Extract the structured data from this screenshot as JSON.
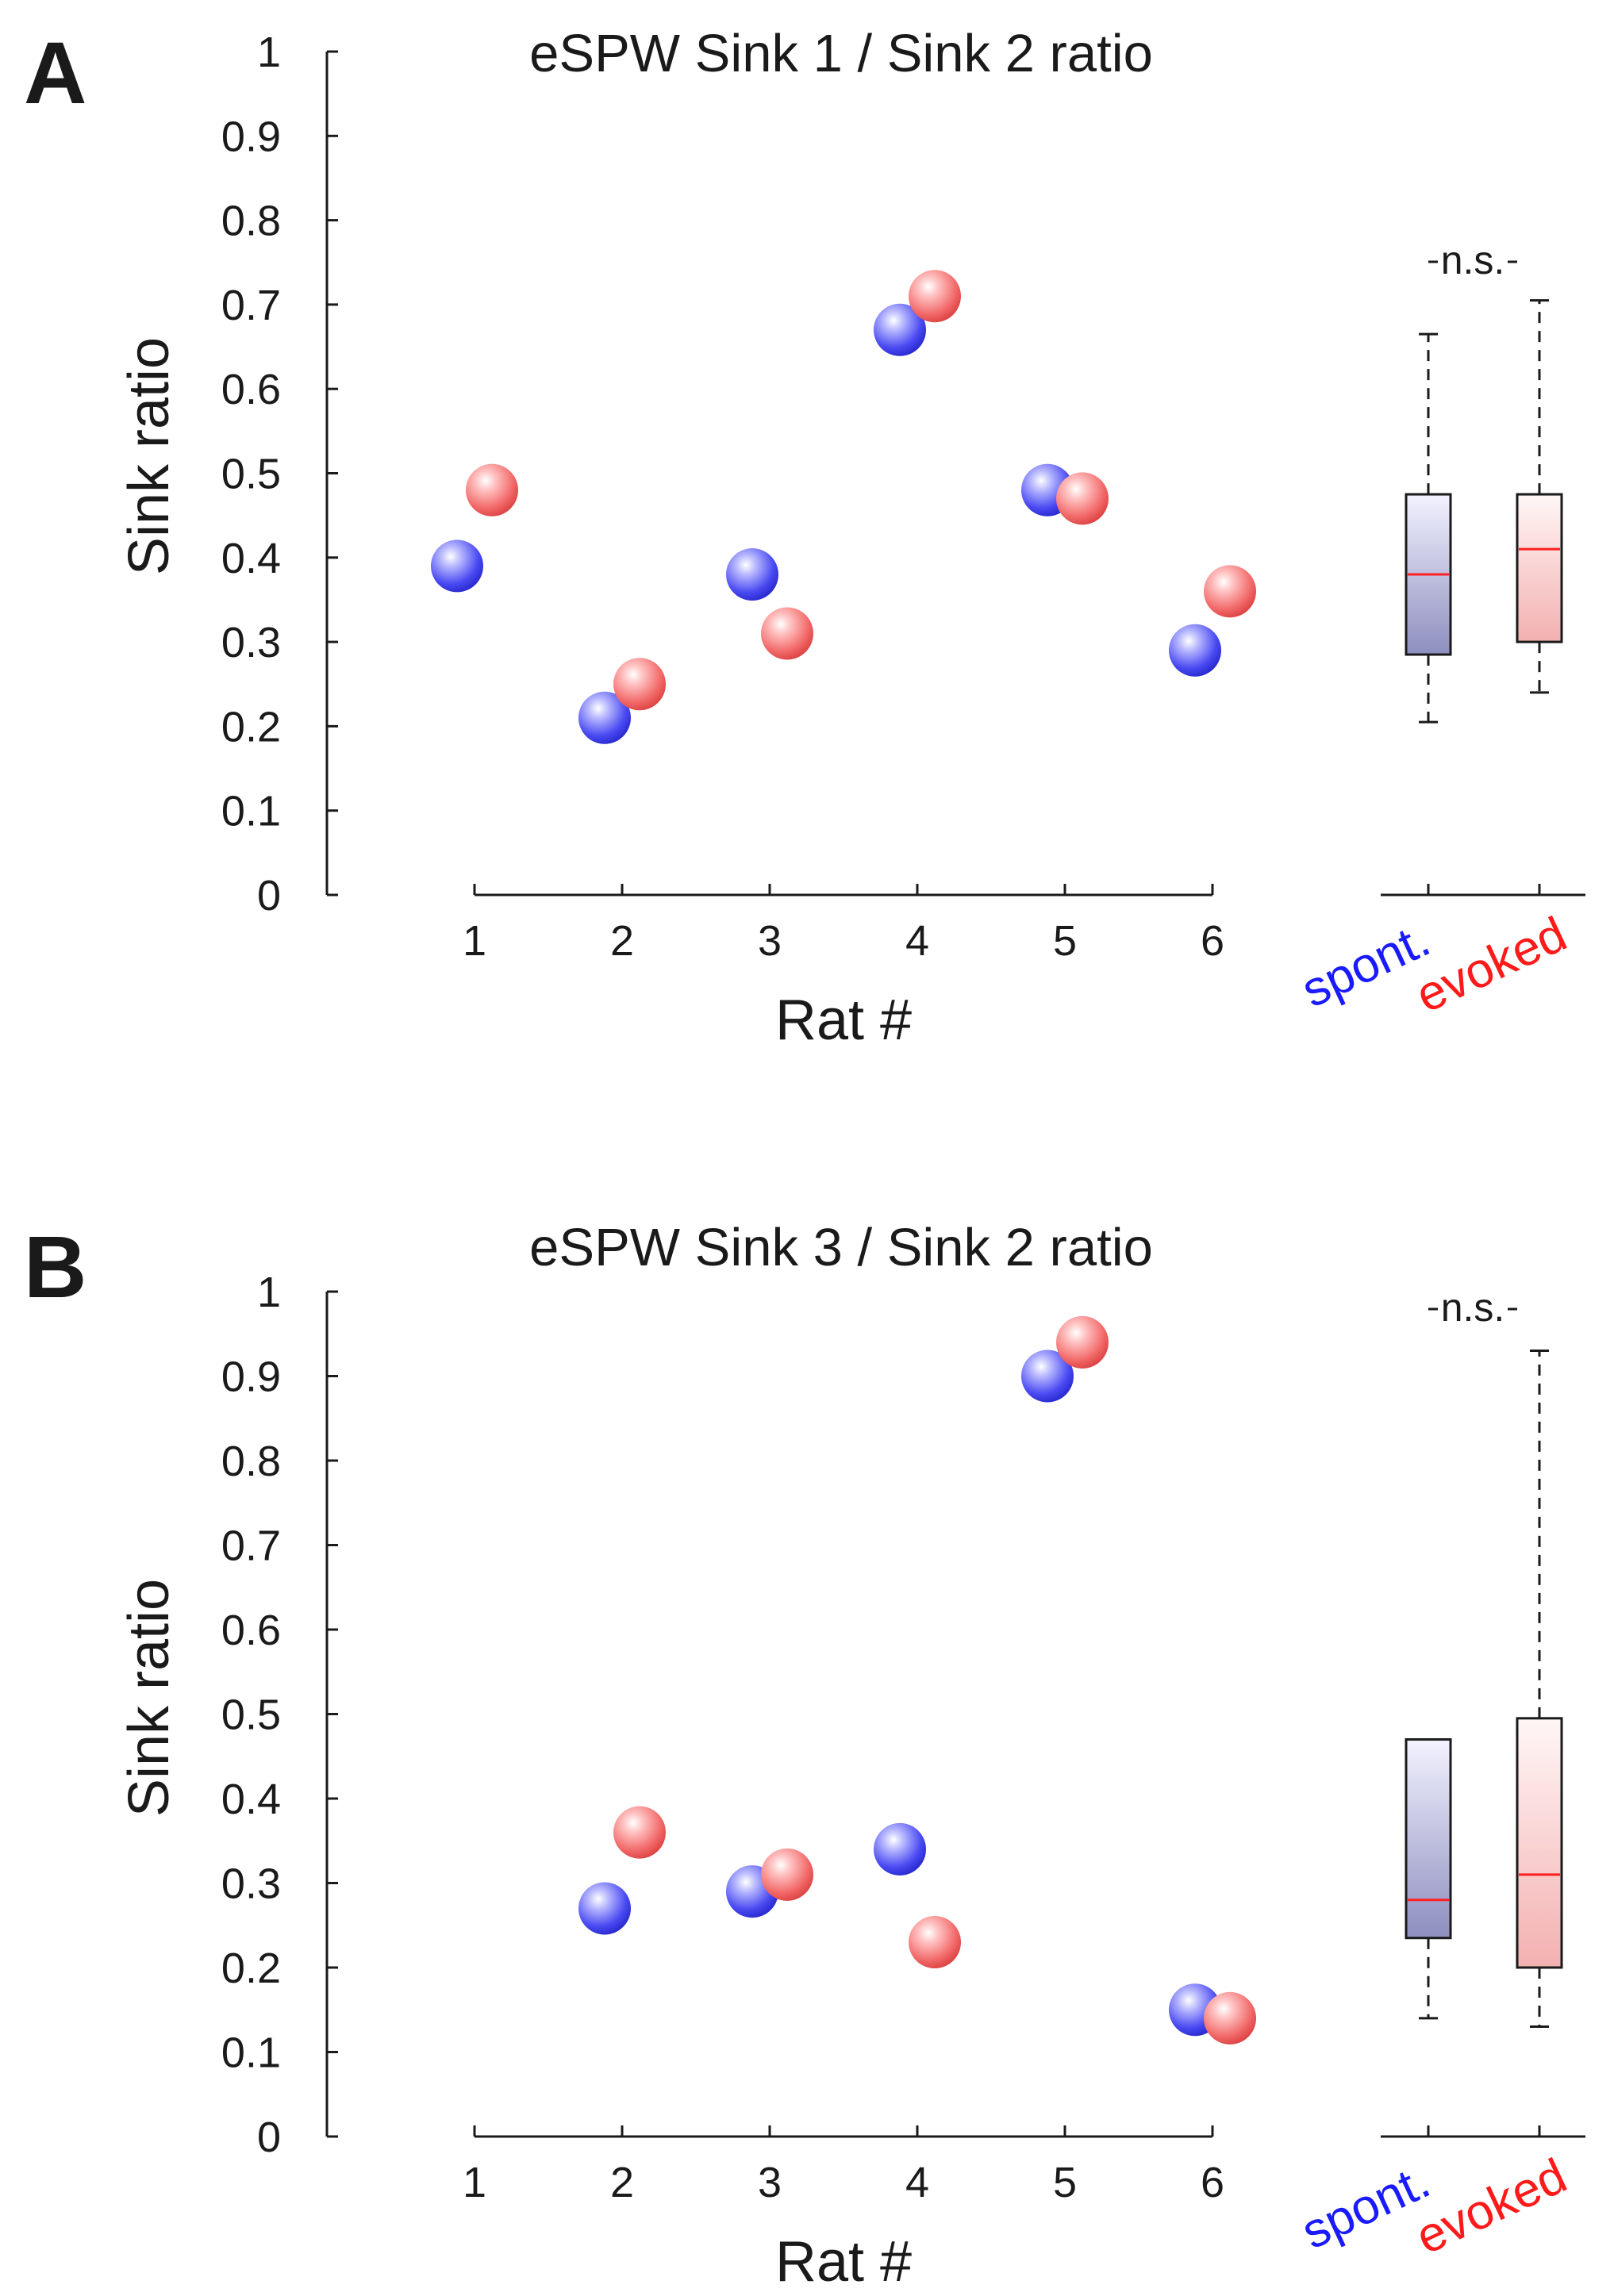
{
  "colors": {
    "spont": "#1a1aff",
    "evoked": "#ff1a1a",
    "axis": "#1a1a1a",
    "median": "#ff2020"
  },
  "chart_data": [
    {
      "type": "scatter",
      "panel": "A",
      "title": "eSPW Sink 1 / Sink 2 ratio",
      "xlabel": "Rat #",
      "ylabel": "Sink ratio",
      "ylim": [
        0,
        1
      ],
      "x_ticks": [
        "1",
        "2",
        "3",
        "4",
        "5",
        "6"
      ],
      "y_ticks": [
        "0",
        "0.1",
        "0.2",
        "0.3",
        "0.4",
        "0.5",
        "0.6",
        "0.7",
        "0.8",
        "0.9",
        "1"
      ],
      "series": [
        {
          "name": "spont.",
          "x": [
            1,
            2,
            3,
            4,
            5,
            6
          ],
          "values": [
            0.39,
            0.21,
            0.38,
            0.67,
            0.48,
            0.29
          ]
        },
        {
          "name": "evoked",
          "x": [
            1,
            2,
            3,
            4,
            5,
            6
          ],
          "values": [
            0.48,
            0.25,
            0.31,
            0.71,
            0.47,
            0.36
          ]
        }
      ],
      "boxplots": [
        {
          "name": "spont.",
          "min": 0.205,
          "q1": 0.285,
          "median": 0.38,
          "q3": 0.475,
          "max": 0.665
        },
        {
          "name": "evoked",
          "min": 0.24,
          "q1": 0.3,
          "median": 0.41,
          "q3": 0.475,
          "max": 0.705
        }
      ],
      "significance": "n.s."
    },
    {
      "type": "scatter",
      "panel": "B",
      "title": "eSPW Sink 3 / Sink 2 ratio",
      "xlabel": "Rat #",
      "ylabel": "Sink ratio",
      "ylim": [
        0,
        1
      ],
      "x_ticks": [
        "1",
        "2",
        "3",
        "4",
        "5",
        "6"
      ],
      "y_ticks": [
        "0",
        "0.1",
        "0.2",
        "0.3",
        "0.4",
        "0.5",
        "0.6",
        "0.7",
        "0.8",
        "0.9",
        "1"
      ],
      "series": [
        {
          "name": "spont.",
          "x": [
            2,
            3,
            4,
            5,
            6
          ],
          "values": [
            0.27,
            0.29,
            0.34,
            0.9,
            0.15
          ]
        },
        {
          "name": "evoked",
          "x": [
            2,
            3,
            4,
            5,
            6
          ],
          "values": [
            0.36,
            0.31,
            0.23,
            0.94,
            0.14
          ]
        }
      ],
      "boxplots": [
        {
          "name": "spont.",
          "min": 0.14,
          "q1": 0.235,
          "median": 0.28,
          "q3": 0.47,
          "max": null
        },
        {
          "name": "evoked",
          "min": 0.13,
          "q1": 0.2,
          "median": 0.31,
          "q3": 0.495,
          "max": 0.93
        }
      ],
      "significance": "n.s."
    }
  ]
}
